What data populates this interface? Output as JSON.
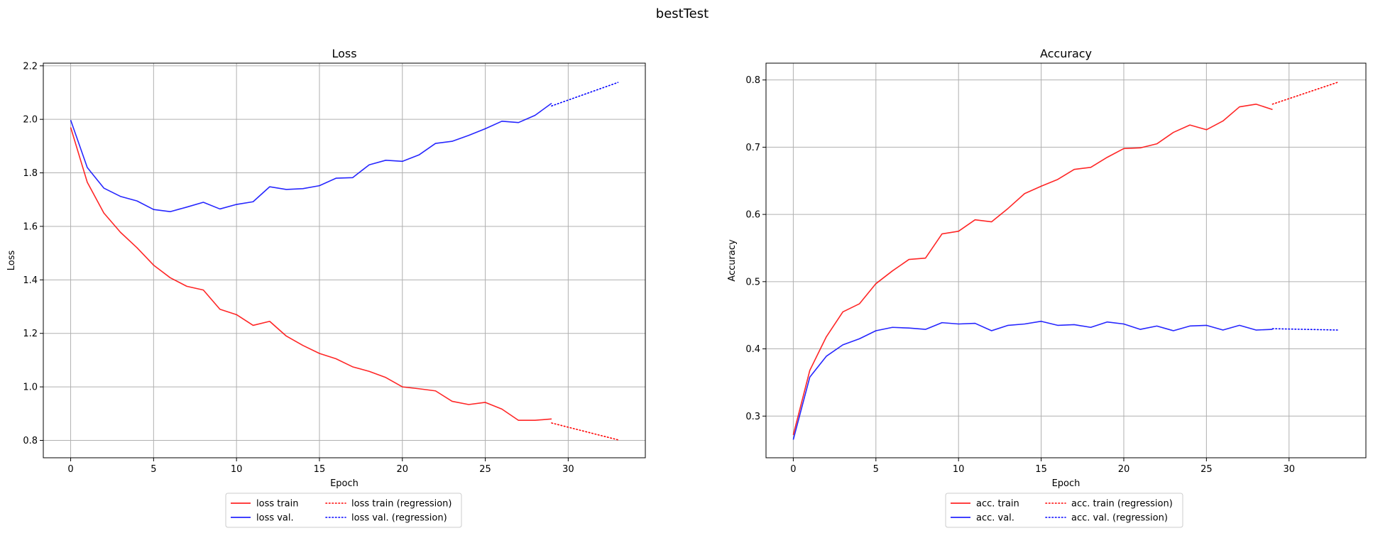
{
  "figure": {
    "suptitle": "bestTest"
  },
  "colors": {
    "train": "#ff0000",
    "val": "#0000ff",
    "grid": "#b0b0b0"
  },
  "chart_data": [
    {
      "type": "line",
      "title": "Loss",
      "xlabel": "Epoch",
      "ylabel": "Loss",
      "xlim": [
        -1.65,
        34.65
      ],
      "ylim": [
        0.735,
        2.21
      ],
      "xticks": [
        0,
        5,
        10,
        15,
        20,
        25,
        30
      ],
      "yticks": [
        0.8,
        1.0,
        1.2,
        1.4,
        1.6,
        1.8,
        2.0,
        2.2
      ],
      "ytick_format": 1,
      "grid": true,
      "legend": "below",
      "series": [
        {
          "name": "loss train",
          "color": "#ff0000",
          "style": "solid",
          "x": [
            0,
            1,
            2,
            3,
            4,
            5,
            6,
            7,
            8,
            9,
            10,
            11,
            12,
            13,
            14,
            15,
            16,
            17,
            18,
            19,
            20,
            21,
            22,
            23,
            24,
            25,
            26,
            27,
            28,
            29
          ],
          "y": [
            1.97,
            1.765,
            1.65,
            1.578,
            1.52,
            1.455,
            1.408,
            1.376,
            1.362,
            1.29,
            1.27,
            1.23,
            1.245,
            1.19,
            1.155,
            1.125,
            1.105,
            1.075,
            1.058,
            1.035,
            1.0,
            0.993,
            0.985,
            0.946,
            0.934,
            0.942,
            0.917,
            0.875,
            0.875,
            0.88
          ]
        },
        {
          "name": "loss val.",
          "color": "#0000ff",
          "style": "solid",
          "x": [
            0,
            1,
            2,
            3,
            4,
            5,
            6,
            7,
            8,
            9,
            10,
            11,
            12,
            13,
            14,
            15,
            16,
            17,
            18,
            19,
            20,
            21,
            22,
            23,
            24,
            25,
            26,
            27,
            28,
            29
          ],
          "y": [
            1.997,
            1.82,
            1.743,
            1.712,
            1.695,
            1.663,
            1.655,
            1.672,
            1.69,
            1.665,
            1.682,
            1.692,
            1.748,
            1.738,
            1.741,
            1.752,
            1.78,
            1.782,
            1.83,
            1.847,
            1.843,
            1.867,
            1.91,
            1.918,
            1.94,
            1.965,
            1.993,
            1.988,
            2.015,
            2.06
          ]
        },
        {
          "name": "loss train (regression)",
          "color": "#ff0000",
          "style": "dotted",
          "x": [
            29,
            33
          ],
          "y": [
            0.865,
            0.802
          ]
        },
        {
          "name": "loss val. (regression)",
          "color": "#0000ff",
          "style": "dotted",
          "x": [
            29,
            33
          ],
          "y": [
            2.05,
            2.138
          ]
        }
      ]
    },
    {
      "type": "line",
      "title": "Accuracy",
      "xlabel": "Epoch",
      "ylabel": "Accuracy",
      "xlim": [
        -1.65,
        34.65
      ],
      "ylim": [
        0.238,
        0.825
      ],
      "xticks": [
        0,
        5,
        10,
        15,
        20,
        25,
        30
      ],
      "yticks": [
        0.3,
        0.4,
        0.5,
        0.6,
        0.7,
        0.8
      ],
      "ytick_format": 1,
      "grid": true,
      "legend": "below",
      "series": [
        {
          "name": "acc. train",
          "color": "#ff0000",
          "style": "solid",
          "x": [
            0,
            1,
            2,
            3,
            4,
            5,
            6,
            7,
            8,
            9,
            10,
            11,
            12,
            13,
            14,
            15,
            16,
            17,
            18,
            19,
            20,
            21,
            22,
            23,
            24,
            25,
            26,
            27,
            28,
            29
          ],
          "y": [
            0.272,
            0.368,
            0.418,
            0.455,
            0.467,
            0.497,
            0.516,
            0.533,
            0.535,
            0.571,
            0.575,
            0.592,
            0.589,
            0.609,
            0.631,
            0.642,
            0.652,
            0.667,
            0.67,
            0.685,
            0.698,
            0.699,
            0.705,
            0.722,
            0.733,
            0.726,
            0.739,
            0.76,
            0.764,
            0.756
          ]
        },
        {
          "name": "acc. val.",
          "color": "#0000ff",
          "style": "solid",
          "x": [
            0,
            1,
            2,
            3,
            4,
            5,
            6,
            7,
            8,
            9,
            10,
            11,
            12,
            13,
            14,
            15,
            16,
            17,
            18,
            19,
            20,
            21,
            22,
            23,
            24,
            25,
            26,
            27,
            28,
            29
          ],
          "y": [
            0.265,
            0.358,
            0.389,
            0.406,
            0.415,
            0.427,
            0.432,
            0.431,
            0.429,
            0.439,
            0.437,
            0.438,
            0.427,
            0.435,
            0.437,
            0.441,
            0.435,
            0.436,
            0.432,
            0.44,
            0.437,
            0.429,
            0.434,
            0.427,
            0.434,
            0.435,
            0.428,
            0.435,
            0.428,
            0.429
          ]
        },
        {
          "name": "acc. train (regression)",
          "color": "#ff0000",
          "style": "dotted",
          "x": [
            29,
            33
          ],
          "y": [
            0.764,
            0.797
          ]
        },
        {
          "name": "acc. val. (regression)",
          "color": "#0000ff",
          "style": "dotted",
          "x": [
            29,
            33
          ],
          "y": [
            0.43,
            0.428
          ]
        }
      ]
    }
  ]
}
